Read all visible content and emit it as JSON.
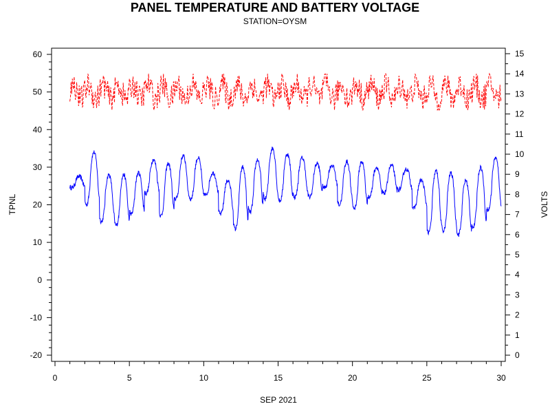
{
  "chart_data": {
    "type": "line",
    "title": "PANEL TEMPERATURE AND BATTERY VOLTAGE",
    "subtitle": "STATION=OYSM",
    "xlabel": "SEP 2021",
    "ylabel_left": "TPNL",
    "ylabel_right": "VOLTS",
    "xlim": [
      0,
      30
    ],
    "ylim_left": [
      -20,
      60
    ],
    "ylim_right": [
      0,
      15
    ],
    "x_ticks": [
      "0",
      "5",
      "10",
      "15",
      "20",
      "25",
      "30"
    ],
    "y_left_ticks": [
      "-20",
      "-10",
      "0",
      "10",
      "20",
      "30",
      "40",
      "50",
      "60"
    ],
    "y_right_ticks": [
      "0",
      "1",
      "2",
      "3",
      "4",
      "5",
      "6",
      "7",
      "8",
      "9",
      "10",
      "11",
      "12",
      "13",
      "14",
      "15"
    ],
    "grid": false,
    "series": [
      {
        "axis": "left",
        "color": "#0000ff",
        "style": "solid",
        "daily": [
          {
            "day": 1,
            "min": 24.5,
            "max": 27.5
          },
          {
            "day": 2,
            "min": 20.0,
            "max": 34.0
          },
          {
            "day": 3,
            "min": 15.5,
            "max": 28.0
          },
          {
            "day": 4,
            "min": 14.5,
            "max": 28.0
          },
          {
            "day": 5,
            "min": 17.5,
            "max": 28.5
          },
          {
            "day": 6,
            "min": 23.0,
            "max": 32.0
          },
          {
            "day": 7,
            "min": 17.0,
            "max": 31.0
          },
          {
            "day": 8,
            "min": 21.5,
            "max": 33.0
          },
          {
            "day": 9,
            "min": 21.5,
            "max": 32.5
          },
          {
            "day": 10,
            "min": 22.5,
            "max": 28.5
          },
          {
            "day": 11,
            "min": 17.5,
            "max": 26.5
          },
          {
            "day": 12,
            "min": 13.5,
            "max": 30.0
          },
          {
            "day": 13,
            "min": 18.0,
            "max": 32.0
          },
          {
            "day": 14,
            "min": 21.5,
            "max": 35.0
          },
          {
            "day": 15,
            "min": 21.0,
            "max": 33.5
          },
          {
            "day": 16,
            "min": 22.0,
            "max": 32.5
          },
          {
            "day": 17,
            "min": 22.0,
            "max": 31.0
          },
          {
            "day": 18,
            "min": 24.5,
            "max": 30.5
          },
          {
            "day": 19,
            "min": 20.0,
            "max": 31.5
          },
          {
            "day": 20,
            "min": 19.0,
            "max": 31.5
          },
          {
            "day": 21,
            "min": 22.0,
            "max": 30.0
          },
          {
            "day": 22,
            "min": 23.0,
            "max": 30.5
          },
          {
            "day": 23,
            "min": 24.0,
            "max": 29.5
          },
          {
            "day": 24,
            "min": 19.0,
            "max": 26.5
          },
          {
            "day": 25,
            "min": 12.5,
            "max": 29.0
          },
          {
            "day": 26,
            "min": 13.0,
            "max": 28.5
          },
          {
            "day": 27,
            "min": 12.0,
            "max": 26.5
          },
          {
            "day": 28,
            "min": 14.0,
            "max": 30.0
          },
          {
            "day": 29,
            "min": 18.5,
            "max": 32.5
          },
          {
            "day": 30,
            "min": 9.5,
            "max": 25.5
          }
        ]
      },
      {
        "axis": "right",
        "color": "#ff0000",
        "style": "dashed",
        "min": 12.2,
        "max": 14.0,
        "mean": 13.1
      }
    ]
  }
}
